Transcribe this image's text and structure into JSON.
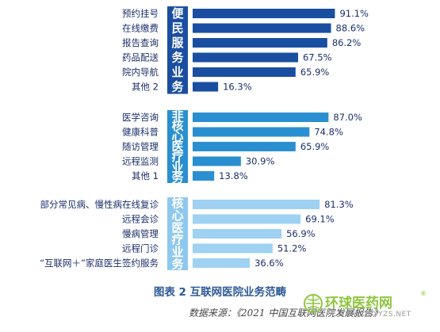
{
  "chart_data": {
    "type": "bar",
    "orientation": "horizontal",
    "xlim": [
      0,
      100
    ],
    "groups": [
      {
        "label": "便民服务业务",
        "color": "#1a4ea1",
        "tag_color": "#1a4ea1",
        "categories": [
          "预约挂号",
          "在线缴费",
          "报告查询",
          "药品配送",
          "院内导航",
          "其他 2"
        ],
        "values": [
          91.1,
          88.6,
          86.2,
          67.5,
          65.9,
          16.3
        ],
        "value_labels": [
          "91.1%",
          "88.6%",
          "86.2%",
          "67.5%",
          "65.9%",
          "16.3%"
        ]
      },
      {
        "label": "非核心医疗业务",
        "color": "#2a8fd0",
        "tag_color": "#2a8fd0",
        "categories": [
          "医学咨询",
          "健康科普",
          "随访管理",
          "远程监测",
          "其他 1"
        ],
        "values": [
          87.0,
          74.8,
          65.9,
          30.9,
          13.8
        ],
        "value_labels": [
          "87.0%",
          "74.8%",
          "65.9%",
          "30.9%",
          "13.8%"
        ]
      },
      {
        "label": "核心医疗业务",
        "color": "#9fd1f3",
        "tag_color": "#8fc8ef",
        "categories": [
          "部分常见病、慢性病在线复诊",
          "远程会诊",
          "慢病管理",
          "远程门诊",
          "“互联网＋”家庭医生签约服务"
        ],
        "values": [
          81.3,
          69.1,
          56.9,
          51.2,
          36.6
        ],
        "value_labels": [
          "81.3%",
          "69.1%",
          "56.9%",
          "51.2%",
          "36.6%"
        ]
      }
    ],
    "grid": false,
    "legend": "none"
  },
  "caption": "图表 2 互联网医院业务范畴",
  "source": "数据来源：《2021 中国互联网医院发展报告》",
  "watermark": {
    "text": "环球医药网",
    "url": "WWW.QGYYZS.NET",
    "reg": "®"
  }
}
